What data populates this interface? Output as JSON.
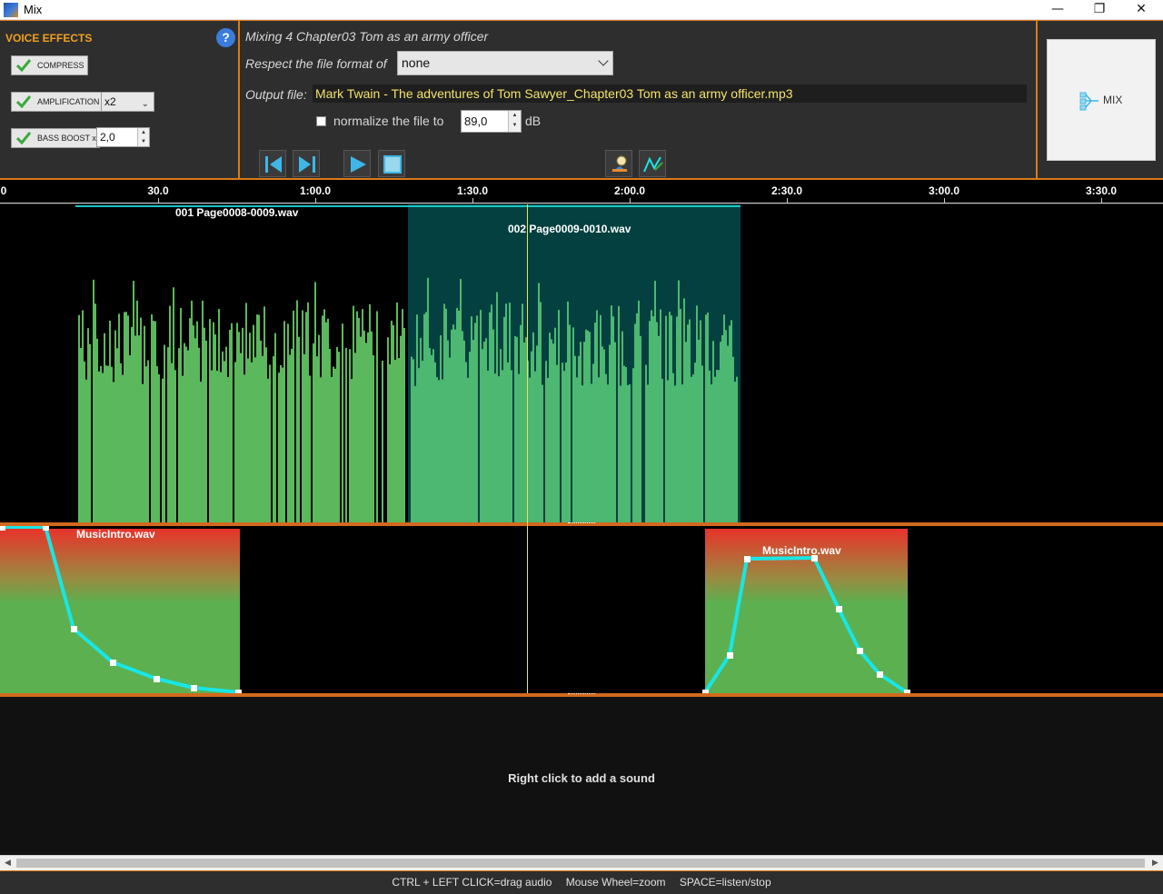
{
  "window": {
    "title": "Mix",
    "minimize": "—",
    "maximize": "❐",
    "close": "✕"
  },
  "voice_effects": {
    "title": "VOICE EFFECTS",
    "help": "?",
    "compress": {
      "label": "COMPRESS",
      "checked": true
    },
    "amplification": {
      "label": "AMPLIFICATION",
      "checked": true,
      "value": "x2"
    },
    "bass_boost": {
      "label": "BASS BOOST x",
      "checked": true,
      "value": "2,0"
    }
  },
  "mix": {
    "title": "Mixing  4 Chapter03 Tom as an army officer",
    "respect_label": "Respect the file format of",
    "format_value": "none",
    "output_label": "Output file:",
    "output_file": "Mark Twain - The adventures of Tom Sawyer_Chapter03 Tom as an army officer.mp3",
    "normalize_label": "normalize the file to",
    "normalize_checked": false,
    "normalize_value": "89,0",
    "db_label": "dB"
  },
  "mix_button": {
    "label": "MIX"
  },
  "timeline": {
    "ticks": [
      "0",
      "30.0",
      "1:00.0",
      "1:30.0",
      "2:00.0",
      "2:30.0",
      "3:00.0",
      "3:30.0"
    ]
  },
  "tracks": {
    "voice_clips": [
      {
        "name": "001 Page0008-0009.wav"
      },
      {
        "name": "002 Page0009-0010.wav"
      }
    ],
    "music_clips": [
      {
        "name": "MusicIntro.wav"
      },
      {
        "name": "MusicIntro.wav"
      }
    ],
    "empty_hint": "Right click to add a sound"
  },
  "status": {
    "drag": "CTRL + LEFT CLICK=drag audio",
    "zoom": "Mouse Wheel=zoom",
    "play": "SPACE=listen/stop"
  },
  "colors": {
    "accent": "#d97a1a",
    "voice_wave": "#5cb85c",
    "selected_clip": "#03403f",
    "envelope": "#18e6e6",
    "output_text": "#f4e36a"
  }
}
